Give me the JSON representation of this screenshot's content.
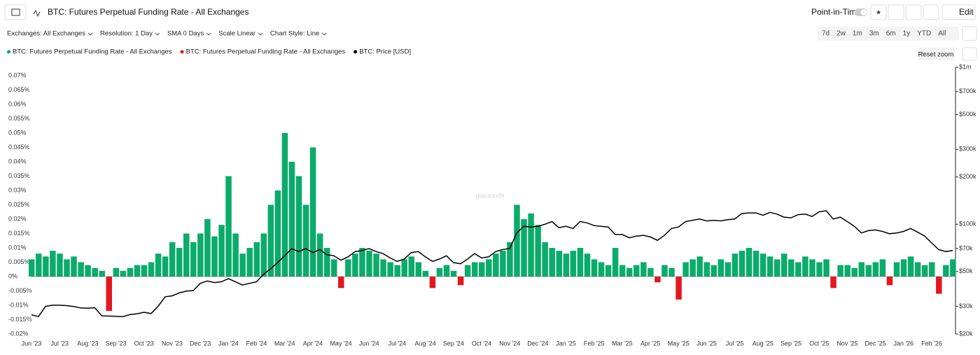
{
  "header": {
    "title": "BTC: Futures Perpetual Funding Rate - All Exchanges",
    "point_in_time": "Point-in-Time",
    "edit": "Edit",
    "toolbar": [
      "Exchanges: All Exchanges",
      "Resolution: 1 Day",
      "SMA 0 Days",
      "Scale Linear",
      "Chart Style: Line"
    ],
    "ranges": [
      "7d",
      "2w",
      "1m",
      "3m",
      "6m",
      "1y",
      "YTD",
      "All"
    ],
    "reset_zoom": "Reset zoom",
    "watermark": "glassnode"
  },
  "chart_data": {
    "type": "bar",
    "categories": [
      "Jun '23",
      null,
      null,
      null,
      "Jul '23",
      null,
      null,
      null,
      "Aug '23",
      null,
      null,
      null,
      "Sep '23",
      null,
      null,
      null,
      "Oct '23",
      null,
      null,
      null,
      "Nov '23",
      null,
      null,
      null,
      "Dec '23",
      null,
      null,
      null,
      "Jan '24",
      null,
      null,
      null,
      "Feb '24",
      null,
      null,
      null,
      "Mar '24",
      null,
      null,
      null,
      "Apr '24",
      null,
      null,
      null,
      "May '24",
      null,
      null,
      null,
      "Jun '24",
      null,
      null,
      null,
      "Jul '24",
      null,
      null,
      null,
      "Aug '24",
      null,
      null,
      null,
      "Sep '24",
      null,
      null,
      null,
      "Oct '24",
      null,
      null,
      null,
      "Nov '24",
      null,
      null,
      null,
      "Dec '24",
      null,
      null,
      null,
      "Jan '25",
      null,
      null,
      null,
      "Feb '25",
      null,
      null,
      null,
      "Mar '25",
      null,
      null,
      null,
      "Apr '25",
      null,
      null,
      null,
      "May '25",
      null,
      null,
      null,
      "Jun '25",
      null,
      null,
      null,
      "Jul '25",
      null,
      null,
      null,
      "Aug '25",
      null,
      null,
      null,
      "Sep '25",
      null,
      null,
      null,
      "Oct '25",
      null,
      null,
      null,
      "Nov '25",
      null,
      null,
      null,
      "Dec '25",
      null,
      null,
      null,
      "Jan '26",
      null,
      null,
      null,
      "Feb '26",
      null,
      null,
      null
    ],
    "series": [
      {
        "name": "BTC: Futures Perpetual Funding Rate - All Exchanges",
        "color": "#0bab6b",
        "type": "bar",
        "values": [
          0.006,
          0.008,
          0.007,
          0.009,
          0.008,
          0.006,
          0.007,
          0.005,
          0.004,
          0.003,
          0.002,
          null,
          0.003,
          0.002,
          0.003,
          0.004,
          0.004,
          0.005,
          0.008,
          0.007,
          0.012,
          0.01,
          0.015,
          0.012,
          0.015,
          0.02,
          0.014,
          0.018,
          0.035,
          0.015,
          0.008,
          0.01,
          0.012,
          0.015,
          0.025,
          0.03,
          0.05,
          0.04,
          0.035,
          0.025,
          0.045,
          0.015,
          0.01,
          0.006,
          null,
          0.006,
          0.008,
          0.01,
          0.009,
          0.008,
          0.006,
          0.005,
          0.004,
          0.006,
          0.007,
          0.005,
          0.002,
          null,
          0.003,
          0.004,
          0.002,
          null,
          0.004,
          0.005,
          0.005,
          0.006,
          0.008,
          0.009,
          0.012,
          0.025,
          0.02,
          0.022,
          0.018,
          0.012,
          0.01,
          0.009,
          0.008,
          0.009,
          0.01,
          0.008,
          0.006,
          0.005,
          0.004,
          0.01,
          0.004,
          0.003,
          0.004,
          0.005,
          0.003,
          null,
          0.004,
          0.003,
          null,
          0.005,
          0.006,
          0.007,
          0.005,
          0.004,
          0.006,
          0.005,
          0.008,
          0.009,
          0.01,
          0.009,
          0.008,
          0.007,
          0.006,
          0.008,
          0.006,
          0.005,
          0.007,
          0.006,
          0.005,
          0.006,
          null,
          0.004,
          0.004,
          0.003,
          0.005,
          0.004,
          0.005,
          0.006,
          null,
          0.005,
          0.006,
          0.007,
          0.005,
          0.004,
          0.005,
          null,
          0.004,
          0.006
        ]
      },
      {
        "name": "BTC: Futures Perpetual Funding Rate - All Exchanges",
        "color": "#e3171f",
        "type": "bar",
        "values": [
          null,
          null,
          null,
          null,
          null,
          null,
          null,
          null,
          null,
          null,
          null,
          -0.012,
          null,
          null,
          null,
          null,
          null,
          null,
          null,
          null,
          null,
          null,
          null,
          null,
          null,
          null,
          null,
          null,
          null,
          null,
          null,
          null,
          null,
          null,
          null,
          null,
          null,
          null,
          null,
          null,
          null,
          null,
          null,
          null,
          -0.004,
          null,
          null,
          null,
          null,
          null,
          null,
          null,
          null,
          null,
          null,
          null,
          null,
          -0.004,
          null,
          null,
          null,
          -0.003,
          null,
          null,
          null,
          null,
          null,
          null,
          null,
          null,
          null,
          null,
          null,
          null,
          null,
          null,
          null,
          null,
          null,
          null,
          null,
          null,
          null,
          null,
          null,
          null,
          null,
          null,
          null,
          -0.002,
          null,
          null,
          -0.008,
          null,
          null,
          null,
          null,
          null,
          null,
          null,
          null,
          null,
          null,
          null,
          null,
          null,
          null,
          null,
          null,
          null,
          null,
          null,
          null,
          null,
          -0.004,
          null,
          null,
          null,
          null,
          null,
          null,
          null,
          -0.003,
          null,
          null,
          null,
          null,
          null,
          null,
          -0.006,
          null,
          null
        ]
      },
      {
        "name": "BTC: Price [USD]",
        "color": "#000000",
        "type": "line",
        "axis": "y2",
        "values": [
          26500,
          25800,
          30000,
          30500,
          30500,
          30300,
          29900,
          29300,
          29200,
          29400,
          26100,
          26000,
          25900,
          25800,
          26600,
          26900,
          27500,
          27000,
          30000,
          34500,
          35000,
          36500,
          37500,
          37800,
          42000,
          43500,
          42500,
          43000,
          45000,
          43000,
          41000,
          42000,
          43000,
          48000,
          52000,
          57000,
          63000,
          70000,
          67000,
          70000,
          66000,
          69000,
          64000,
          63000,
          59000,
          62000,
          67000,
          68000,
          70000,
          67000,
          65000,
          61000,
          58000,
          60000,
          66000,
          67000,
          62000,
          58000,
          60000,
          63000,
          57000,
          56000,
          60000,
          65000,
          61000,
          62000,
          67000,
          69000,
          70000,
          88000,
          97000,
          96000,
          97000,
          100000,
          104000,
          95000,
          97000,
          94000,
          104000,
          102000,
          98000,
          97000,
          96000,
          86000,
          86000,
          82000,
          84000,
          85000,
          83000,
          79000,
          85000,
          94000,
          96000,
          104000,
          106000,
          108000,
          105000,
          106000,
          105000,
          107000,
          108000,
          117000,
          118000,
          118000,
          114000,
          119000,
          116000,
          111000,
          110000,
          115000,
          116000,
          112000,
          120000,
          122000,
          108000,
          111000,
          104000,
          97000,
          88000,
          91000,
          92000,
          90000,
          87000,
          88000,
          90000,
          94000,
          89000,
          84000,
          76000,
          69000,
          67000,
          68000
        ]
      }
    ],
    "ylim": [
      -0.02,
      0.07
    ],
    "yticks": [
      {
        "value": -0.02,
        "label": "-0.02%"
      },
      {
        "value": -0.015,
        "label": "-0.015%"
      },
      {
        "value": -0.01,
        "label": "-0.01%"
      },
      {
        "value": -0.005,
        "label": "-0.005%"
      },
      {
        "value": 0,
        "label": "0%"
      },
      {
        "value": 0.005,
        "label": "0.005%"
      },
      {
        "value": 0.01,
        "label": "0.01%"
      },
      {
        "value": 0.015,
        "label": "0.015%"
      },
      {
        "value": 0.02,
        "label": "0.02%"
      },
      {
        "value": 0.025,
        "label": "0.025%"
      },
      {
        "value": 0.03,
        "label": "0.03%"
      },
      {
        "value": 0.035,
        "label": "0.035%"
      },
      {
        "value": 0.04,
        "label": "0.04%"
      },
      {
        "value": 0.045,
        "label": "0.045%"
      },
      {
        "value": 0.05,
        "label": "0.05%"
      },
      {
        "value": 0.055,
        "label": "0.055%"
      },
      {
        "value": 0.06,
        "label": "0.06%"
      },
      {
        "value": 0.065,
        "label": "0.065%"
      },
      {
        "value": 0.07,
        "label": "0.07%"
      }
    ],
    "y2lim": [
      20000,
      1000000
    ],
    "y2log": true,
    "y2ticks": [
      {
        "value": 20000,
        "label": "$20k"
      },
      {
        "value": 30000,
        "label": "$30k"
      },
      {
        "value": 50000,
        "label": "$50k"
      },
      {
        "value": 70000,
        "label": "$70k"
      },
      {
        "value": 100000,
        "label": "$100k"
      },
      {
        "value": 200000,
        "label": "$200k"
      },
      {
        "value": 300000,
        "label": "$300k"
      },
      {
        "value": 500000,
        "label": "$500k"
      },
      {
        "value": 700000,
        "label": "$700k"
      },
      {
        "value": 1000000,
        "label": "$1m"
      }
    ],
    "grid": false
  }
}
